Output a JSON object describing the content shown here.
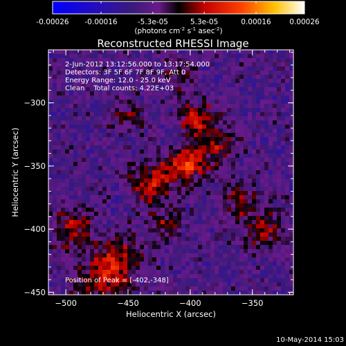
{
  "chart_data": {
    "type": "heatmap",
    "title": "Reconstructed RHESSI Image",
    "xlabel": "Heliocentric X (arcsec)",
    "ylabel": "Heliocentric Y (arcsec)",
    "xlim": [
      -514,
      -317
    ],
    "ylim": [
      -452,
      -258
    ],
    "xticks": [
      -500,
      -450,
      -400,
      -350
    ],
    "yticks": [
      -300,
      -350,
      -400,
      -450
    ],
    "colorbar": {
      "label_parts": {
        "base": "(photons cm",
        "sup1": "-2",
        "mid": " s",
        "sup2": "-1",
        "mid2": " asec",
        "sup3": "-2",
        "end": ")"
      },
      "range": [
        -0.00026,
        0.00026
      ],
      "tick_labels": [
        "-0.00026",
        "-0.00016",
        "-5.3e-05",
        "5.3e-05",
        "0.00016",
        "0.00026"
      ],
      "tick_values": [
        -0.00026,
        -0.00016,
        -5.3e-05,
        5.3e-05,
        0.00016,
        0.00026
      ]
    },
    "annotations": [
      "2-Jun-2012 13:12:56.000 to 13:17:54.000",
      "Detectors: 3F 5F 6F 7F 8F 9F, Att 0",
      "Energy Range: 12.0 - 25.0 keV",
      "Clean    Total counts: 4.22E+03"
    ],
    "peak_label": "Position of Peak = [-402,-348]",
    "peak": {
      "x": -402,
      "y": -348
    },
    "sources": [
      {
        "x": -402,
        "y": -348,
        "amp": 1.0,
        "sigma": 9
      },
      {
        "x": -395,
        "y": -312,
        "amp": 0.75,
        "sigma": 10
      },
      {
        "x": -430,
        "y": -362,
        "amp": 0.7,
        "sigma": 12
      },
      {
        "x": -378,
        "y": -335,
        "amp": 0.6,
        "sigma": 11
      },
      {
        "x": -470,
        "y": -440,
        "amp": 0.72,
        "sigma": 14
      },
      {
        "x": -495,
        "y": -400,
        "amp": 0.62,
        "sigma": 12
      },
      {
        "x": -455,
        "y": -420,
        "amp": 0.55,
        "sigma": 12
      },
      {
        "x": -340,
        "y": -400,
        "amp": 0.5,
        "sigma": 12
      },
      {
        "x": -360,
        "y": -380,
        "amp": 0.45,
        "sigma": 11
      },
      {
        "x": -420,
        "y": -395,
        "amp": 0.45,
        "sigma": 10
      },
      {
        "x": -450,
        "y": -310,
        "amp": 0.4,
        "sigma": 10
      },
      {
        "x": -410,
        "y": -280,
        "amp": 0.35,
        "sigma": 10
      }
    ],
    "colormap": [
      [
        0.0,
        "#0000ff"
      ],
      [
        0.2,
        "#2a0fb0"
      ],
      [
        0.32,
        "#3a1a7a"
      ],
      [
        0.42,
        "#6a1a8a"
      ],
      [
        0.5,
        "#000000"
      ],
      [
        0.6,
        "#c00000"
      ],
      [
        0.75,
        "#ff4000"
      ],
      [
        0.88,
        "#ffc000"
      ],
      [
        1.0,
        "#ffffff"
      ]
    ]
  },
  "footer": {
    "date": "10-May-2014 15:03"
  }
}
